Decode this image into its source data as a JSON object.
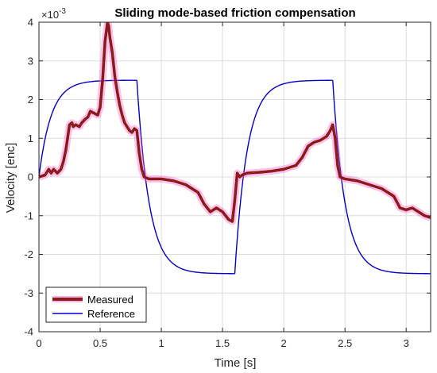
{
  "chart_data": {
    "type": "line",
    "title": "Sliding mode-based friction compensation",
    "xlabel": "Time [s]",
    "ylabel": "Velocity [enc]",
    "y_exponent_label": "×10",
    "y_exponent_power": "-3",
    "xlim": [
      0,
      3.2
    ],
    "ylim": [
      -4,
      4
    ],
    "x_ticks": [
      0,
      0.5,
      1,
      1.5,
      2,
      2.5,
      3
    ],
    "x_tick_labels": [
      "0",
      "0.5",
      "1",
      "1.5",
      "2",
      "2.5",
      "3"
    ],
    "y_ticks": [
      -4,
      -3,
      -2,
      -1,
      0,
      1,
      2,
      3,
      4
    ],
    "y_tick_labels": [
      "-4",
      "-3",
      "-2",
      "-1",
      "0",
      "1",
      "2",
      "3",
      "4"
    ],
    "grid": true,
    "legend_position": "bottom-left",
    "series": [
      {
        "name": "Measured",
        "color": "#8B1A1A",
        "glow_color": "#FF66CC",
        "x": [
          0,
          0.05,
          0.08,
          0.1,
          0.12,
          0.15,
          0.18,
          0.2,
          0.22,
          0.25,
          0.27,
          0.28,
          0.3,
          0.33,
          0.35,
          0.38,
          0.4,
          0.42,
          0.45,
          0.48,
          0.5,
          0.52,
          0.54,
          0.56,
          0.57,
          0.58,
          0.6,
          0.62,
          0.64,
          0.66,
          0.68,
          0.7,
          0.72,
          0.74,
          0.76,
          0.78,
          0.8,
          0.82,
          0.84,
          0.86,
          0.9,
          1,
          1.1,
          1.2,
          1.3,
          1.35,
          1.4,
          1.45,
          1.5,
          1.55,
          1.58,
          1.6,
          1.62,
          1.64,
          1.66,
          1.7,
          1.8,
          1.9,
          2,
          2.1,
          2.15,
          2.2,
          2.25,
          2.3,
          2.35,
          2.38,
          2.4,
          2.42,
          2.44,
          2.46,
          2.5,
          2.6,
          2.7,
          2.8,
          2.9,
          2.95,
          3,
          3.05,
          3.1,
          3.15,
          3.2
        ],
        "y": [
          0,
          0.05,
          0.2,
          0.1,
          0.2,
          0.1,
          0.2,
          0.4,
          0.7,
          1.35,
          1.4,
          1.3,
          1.35,
          1.3,
          1.4,
          1.5,
          1.55,
          1.7,
          1.65,
          1.6,
          1.8,
          2.5,
          3.5,
          4.0,
          3.9,
          3.6,
          3.2,
          2.6,
          2.2,
          1.85,
          1.6,
          1.4,
          1.3,
          1.2,
          1.15,
          1.25,
          1.2,
          0.6,
          0.2,
          0,
          -0.05,
          -0.05,
          -0.1,
          -0.2,
          -0.4,
          -0.7,
          -0.9,
          -0.8,
          -0.9,
          -1.1,
          -1.15,
          -0.6,
          0.1,
          0,
          0.05,
          0.1,
          0.12,
          0.15,
          0.2,
          0.3,
          0.5,
          0.8,
          0.9,
          0.95,
          1.05,
          1.2,
          1.35,
          1.0,
          0.3,
          0,
          -0.05,
          -0.1,
          -0.2,
          -0.3,
          -0.5,
          -0.8,
          -0.85,
          -0.8,
          -0.9,
          -1.0,
          -1.05
        ]
      },
      {
        "name": "Reference",
        "color": "#0000CC",
        "segments": [
          {
            "start": 0,
            "end": 0.8,
            "from": 0,
            "to": 2.5,
            "tau": 0.1
          },
          {
            "start": 0.8,
            "end": 1.6,
            "from": 2.5,
            "to": -2.5,
            "tau": 0.1
          },
          {
            "start": 1.6,
            "end": 2.4,
            "from": -2.5,
            "to": 2.5,
            "tau": 0.1
          },
          {
            "start": 2.4,
            "end": 3.2,
            "from": 2.5,
            "to": -2.5,
            "tau": 0.1
          }
        ]
      }
    ]
  }
}
